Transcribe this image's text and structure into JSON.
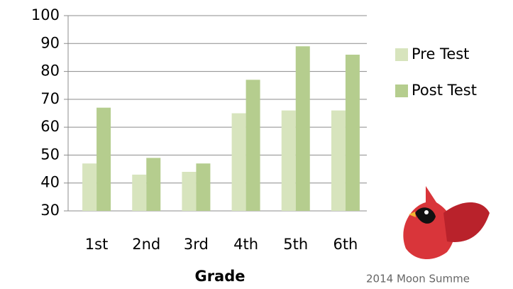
{
  "chart_data": {
    "type": "bar",
    "x_label": "Grade",
    "categories": [
      "1st",
      "2nd",
      "3rd",
      "4th",
      "5th",
      "6th"
    ],
    "series": [
      {
        "name": "Pre Test",
        "color": "#d7e4bd",
        "values": [
          47,
          43,
          44,
          65,
          66,
          66
        ]
      },
      {
        "name": "Post Test",
        "color": "#b5cd8e",
        "values": [
          67,
          49,
          47,
          77,
          89,
          86
        ]
      }
    ],
    "ylim": [
      30,
      100
    ],
    "yticks": [
      30,
      40,
      50,
      60,
      70,
      80,
      90,
      100
    ],
    "grid": true,
    "legend": "right",
    "caption": "2014 Moon Summe"
  }
}
